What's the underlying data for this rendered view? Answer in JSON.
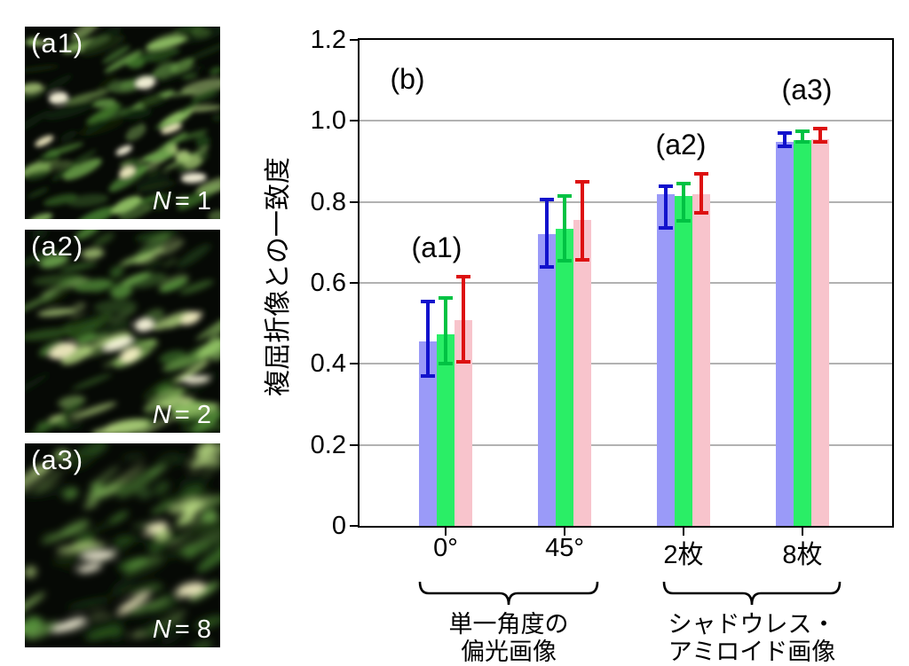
{
  "figure": {
    "panels": [
      {
        "label": "(a1)",
        "n_var": "N",
        "n_value": "= 1"
      },
      {
        "label": "(a2)",
        "n_var": "N",
        "n_value": "= 2"
      },
      {
        "label": "(a3)",
        "n_var": "N",
        "n_value": "= 8"
      }
    ]
  },
  "chart_data": {
    "type": "bar",
    "title": "",
    "xlabel": "",
    "ylabel": "複屈折像との一致度",
    "ylim": [
      0,
      1.2
    ],
    "yticks": [
      0,
      0.2,
      0.4,
      0.6,
      0.8,
      1.0,
      1.2
    ],
    "grid": true,
    "legend": "none",
    "categories": [
      "0°",
      "45°",
      "2枚",
      "8枚"
    ],
    "series": [
      {
        "name": "blue",
        "color": "#9a9af8",
        "error_color": "#1212cc",
        "values": [
          0.455,
          0.72,
          0.82,
          0.948
        ],
        "error_low": [
          0.37,
          0.64,
          0.735,
          0.938
        ],
        "error_high": [
          0.553,
          0.805,
          0.838,
          0.97
        ]
      },
      {
        "name": "green",
        "color": "#2aee66",
        "error_color": "#00c243",
        "values": [
          0.473,
          0.734,
          0.815,
          0.953
        ],
        "error_low": [
          0.4,
          0.655,
          0.753,
          0.948
        ],
        "error_high": [
          0.562,
          0.815,
          0.846,
          0.975
        ]
      },
      {
        "name": "pink",
        "color": "#f8c4cc",
        "error_color": "#dd1111",
        "values": [
          0.507,
          0.755,
          0.82,
          0.955
        ],
        "error_low": [
          0.406,
          0.657,
          0.774,
          0.949
        ],
        "error_high": [
          0.615,
          0.85,
          0.87,
          0.98
        ]
      }
    ],
    "annotations": [
      {
        "text": "(b)"
      },
      {
        "text": "(a1)"
      },
      {
        "text": "(a2)"
      },
      {
        "text": "(a3)"
      }
    ],
    "group_brackets": [
      {
        "label_lines": [
          "単一角度の",
          "偏光画像"
        ],
        "span": [
          "0°",
          "45°"
        ]
      },
      {
        "label_lines": [
          "シャドウレス・",
          "アミロイド画像"
        ],
        "span": [
          "2枚",
          "8枚"
        ]
      }
    ]
  }
}
